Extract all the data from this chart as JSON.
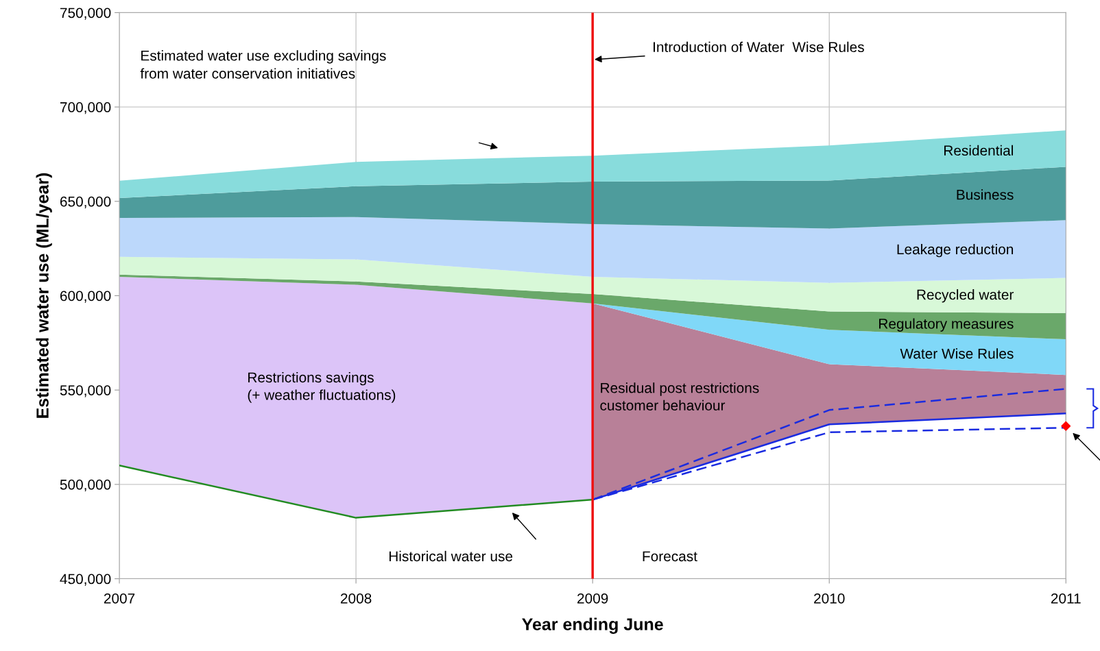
{
  "chart_data": {
    "type": "area",
    "xlabel": "Year ending June",
    "ylabel": "Estimated water use (ML/year)",
    "x": [
      2007,
      2008,
      2009,
      2010,
      2011
    ],
    "xlim": [
      2007,
      2011
    ],
    "xticks": [
      2007,
      2008,
      2009,
      2010,
      2011
    ],
    "ylim": [
      450000,
      750000
    ],
    "yticks": [
      {
        "value": 450000,
        "label": "450,000"
      },
      {
        "value": 500000,
        "label": "500,000"
      },
      {
        "value": 550000,
        "label": "550,000"
      },
      {
        "value": 600000,
        "label": "600,000"
      },
      {
        "value": 650000,
        "label": "650,000"
      },
      {
        "value": 700000,
        "label": "700,000"
      },
      {
        "value": 750000,
        "label": "750,000"
      }
    ],
    "grid": true,
    "series": [
      {
        "type": "line",
        "color": "#228b22",
        "line_style": "solid",
        "values": [
          510000,
          482300,
          491900,
          null,
          null
        ]
      },
      {
        "type": "line",
        "color": "#1a2be0",
        "line_style": "solid",
        "values": [
          null,
          null,
          491900,
          531800,
          537600
        ]
      },
      {
        "type": "line",
        "color": "#1a2be0",
        "line_style": "dashed",
        "values": [
          null,
          null,
          491900,
          539400,
          550600
        ]
      },
      {
        "type": "line",
        "color": "#1a2be0",
        "line_style": "dashed",
        "values": [
          null,
          null,
          491900,
          527600,
          530000
        ]
      },
      {
        "name": "Restrictions savings\n(+ weather fluctuations)",
        "color": "#dcc4f8",
        "values": [
          610000,
          605800,
          595900,
          null,
          null
        ]
      },
      {
        "name": "Residual post restrictions\ncustomer behaviour",
        "color": "#b88098",
        "values": [
          null,
          null,
          595900,
          563700,
          558000
        ]
      },
      {
        "name": "Water Wise Rules",
        "color": "#80d8f8",
        "values": [
          null,
          null,
          595900,
          581900,
          576900
        ]
      },
      {
        "name": "Regulatory measures",
        "color": "#6aa86a",
        "values": [
          611200,
          607500,
          600900,
          591600,
          590800
        ]
      },
      {
        "name": "Recycled water",
        "color": "#d8f8d8",
        "values": [
          620600,
          619200,
          610000,
          606800,
          609400
        ]
      },
      {
        "name": "Leakage reduction",
        "color": "#bcd8fb",
        "values": [
          641200,
          641700,
          637900,
          635600,
          640000
        ]
      },
      {
        "name": "Business",
        "color": "#4e9c9c",
        "values": [
          651700,
          658000,
          660500,
          661000,
          668300
        ]
      },
      {
        "name": "Residential",
        "color": "#88dcdc",
        "values": [
          660900,
          670900,
          674200,
          679600,
          687600
        ]
      },
      {
        "type": "scatter",
        "color": "#ff0000",
        "marker": "diamond",
        "x": [
          2011
        ],
        "values": [
          530900
        ]
      }
    ],
    "ref_lines": [
      {
        "axis": "x",
        "value": 2009,
        "label": "Introduction of Water  Wise Rules",
        "color": "#ee1111"
      }
    ],
    "annotations": [
      "Estimated water use excluding savings\nfrom water conservation initiatives",
      "Historical water use",
      "Forecast"
    ]
  }
}
